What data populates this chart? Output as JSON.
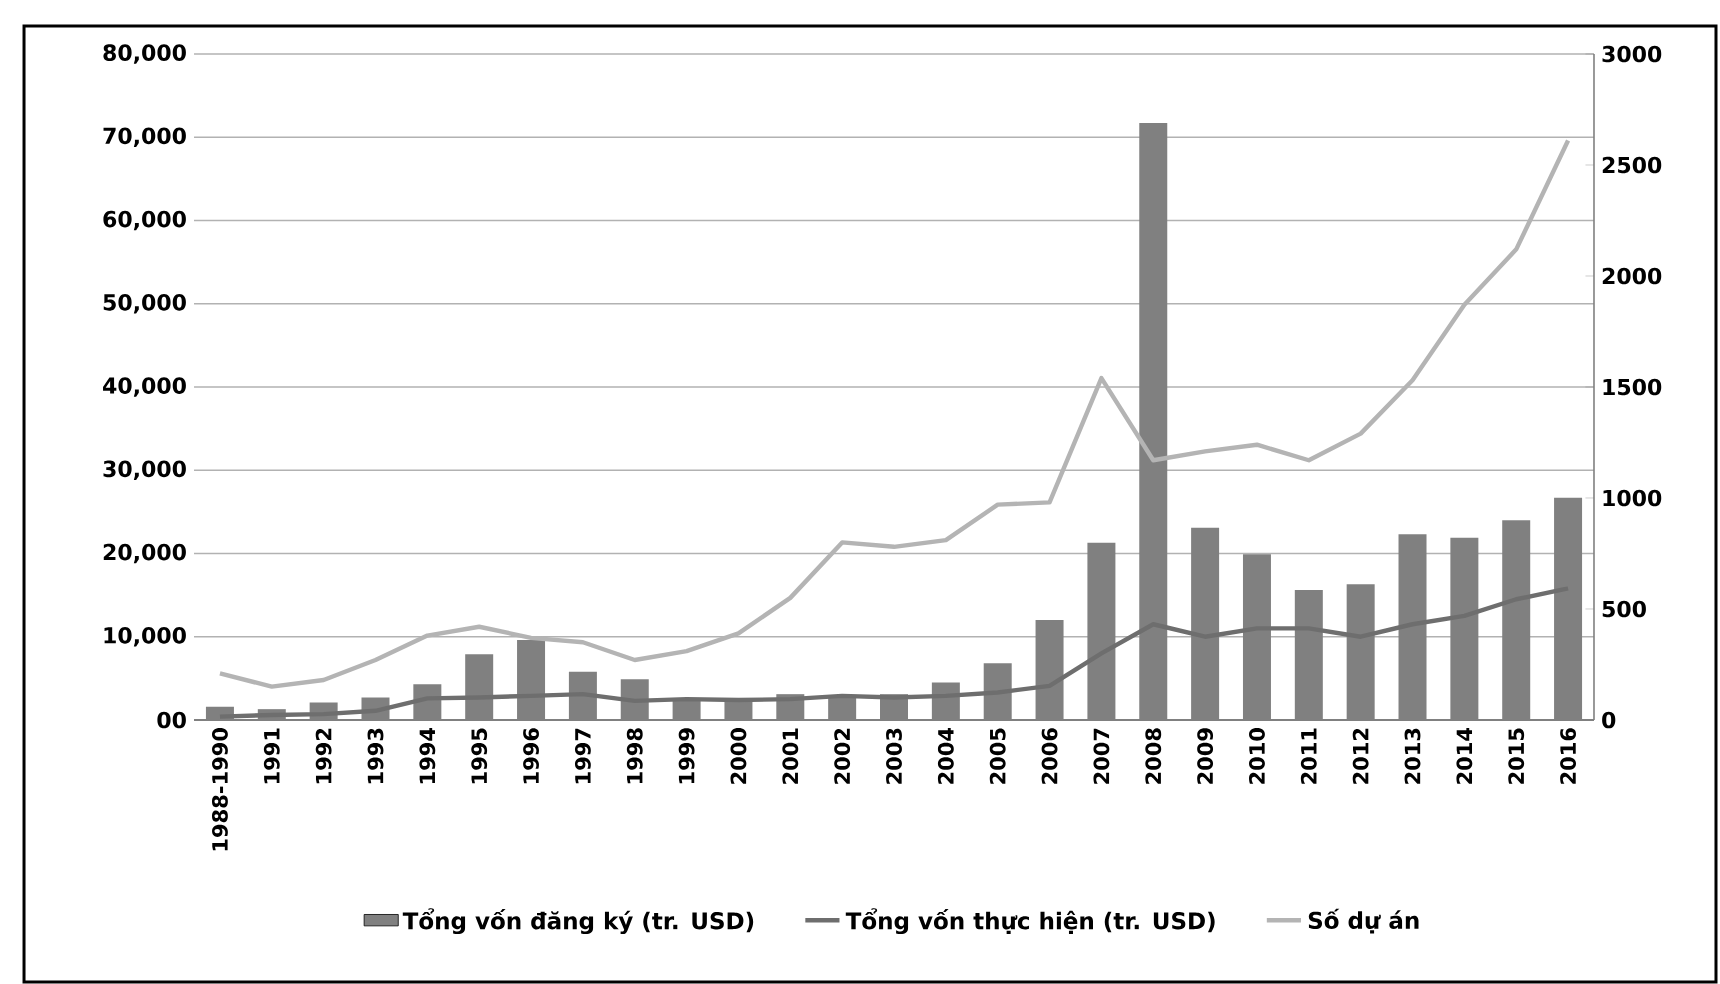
{
  "chart_data": {
    "type": "bar",
    "categories": [
      "1988-1990",
      "1991",
      "1992",
      "1993",
      "1994",
      "1995",
      "1996",
      "1997",
      "1998",
      "1999",
      "2000",
      "2001",
      "2002",
      "2003",
      "2004",
      "2005",
      "2006",
      "2007",
      "2008",
      "2009",
      "2010",
      "2011",
      "2012",
      "2013",
      "2014",
      "2015",
      "2016"
    ],
    "series": [
      {
        "name": "**Tổng vốn đăng ký (tr. USD)**",
        "color": "#808080",
        "values": [
          1600,
          1300,
          2100,
          2700,
          4300,
          7900,
          9600,
          5800,
          4900,
          2600,
          2600,
          3100,
          2900,
          3100,
          4500,
          6800,
          12000,
          21300,
          71700,
          23100,
          19900,
          15600,
          16300,
          22300,
          21900,
          24000,
          26700
        ]
      },
      {
        "name": "**Tổng vốn thực hiện (tr. USD)**",
        "type": "line",
        "color": "#6e6e6e",
        "values": [
          400,
          600,
          700,
          1100,
          2600,
          2700,
          2900,
          3100,
          2300,
          2500,
          2400,
          2500,
          2900,
          2700,
          2900,
          3300,
          4100,
          8000,
          11500,
          10000,
          11000,
          11000,
          10000,
          11500,
          12500,
          14500,
          15800
        ]
      },
      {
        "name": "**Số dự án**",
        "type": "line",
        "axis": "y2",
        "color": "#b4b4b4",
        "values": [
          210,
          150,
          180,
          270,
          380,
          420,
          370,
          350,
          270,
          310,
          390,
          550,
          800,
          780,
          810,
          970,
          980,
          1540,
          1170,
          1210,
          1240,
          1170,
          1290,
          1530,
          1870,
          2120,
          2610
        ]
      }
    ],
    "ylim": [
      0,
      80000
    ],
    "yticks": [
      {
        "value": 0,
        "label": "00"
      },
      {
        "value": 10000,
        "label": "10,000"
      },
      {
        "value": 20000,
        "label": "20,000"
      },
      {
        "value": 30000,
        "label": "30,000"
      },
      {
        "value": 40000,
        "label": "40,000"
      },
      {
        "value": 50000,
        "label": "50,000"
      },
      {
        "value": 60000,
        "label": "60,000"
      },
      {
        "value": 70000,
        "label": "70,000"
      },
      {
        "value": 80000,
        "label": "80,000"
      }
    ],
    "y2lim": [
      0,
      3000
    ],
    "y2ticks": [
      0,
      500,
      1000,
      1500,
      2000,
      2500,
      3000
    ],
    "grid": "y",
    "legend": "bottom"
  }
}
